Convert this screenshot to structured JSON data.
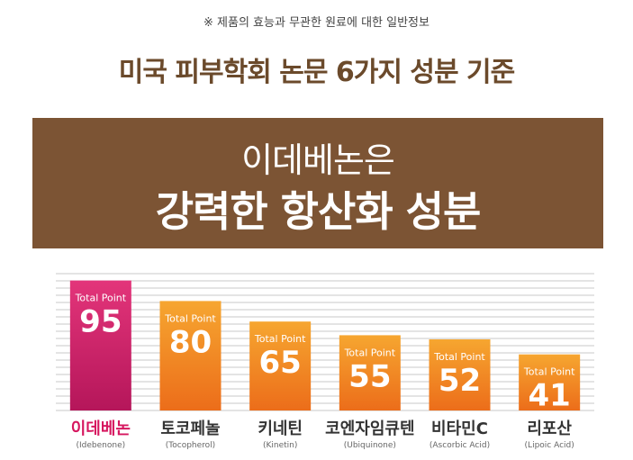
{
  "header": {
    "notice": "※ 제품의 효능과 무관한 원료에 대한 일반정보",
    "headline": "미국 피부학회 논문 6가지 성분 기준",
    "banner_line1": "이데베논은",
    "banner_line2": "강력한 항산화 성분"
  },
  "chart_data": {
    "type": "bar",
    "bar_label": "Total Point",
    "categories": [
      "이데베논",
      "토코페놀",
      "키네틴",
      "코엔자임큐텐",
      "비타민C",
      "리포산"
    ],
    "subtitles": [
      "(Idebenone)",
      "(Tocopherol)",
      "(Kinetin)",
      "(Ubiquinone)",
      "(Ascorbic Acid)",
      "(Lipoic Acid)"
    ],
    "values": [
      95,
      80,
      65,
      55,
      52,
      41
    ],
    "ylim": [
      0,
      100
    ],
    "grid": true,
    "colors": {
      "highlight_top": "#e3357a",
      "highlight_bottom": "#b5165a",
      "bar_top": "#f6a630",
      "bar_bottom": "#ec6d1a",
      "highlight_label": "#d6175f",
      "label": "#333333",
      "grid": "#c8c8c8"
    }
  }
}
